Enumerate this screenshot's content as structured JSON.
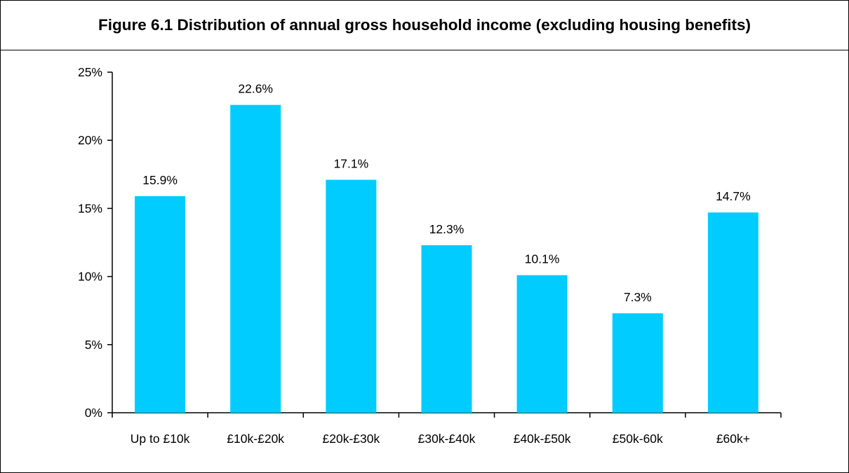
{
  "title": "Figure 6.1 Distribution of annual gross household income (excluding housing benefits)",
  "colors": {
    "bar": "#00CCFF",
    "axis": "#000000",
    "border": "#000000",
    "background": "#FFFFFF"
  },
  "chart_data": {
    "type": "bar",
    "title": "Figure 6.1 Distribution of annual gross household income (excluding housing benefits)",
    "xlabel": "",
    "ylabel": "",
    "categories": [
      "Up to £10k",
      "£10k-£20k",
      "£20k-£30k",
      "£30k-£40k",
      "£40k-£50k",
      "£50k-60k",
      "£60k+"
    ],
    "values": [
      15.9,
      22.6,
      17.1,
      12.3,
      10.1,
      7.3,
      14.7
    ],
    "data_labels": [
      "15.9%",
      "22.6%",
      "17.1%",
      "12.3%",
      "10.1%",
      "7.3%",
      "14.7%"
    ],
    "ylim": [
      0,
      25
    ],
    "yticks": [
      0,
      5,
      10,
      15,
      20,
      25
    ],
    "ytick_labels": [
      "0%",
      "5%",
      "10%",
      "15%",
      "20%",
      "25%"
    ],
    "grid": false,
    "legend": "none"
  }
}
